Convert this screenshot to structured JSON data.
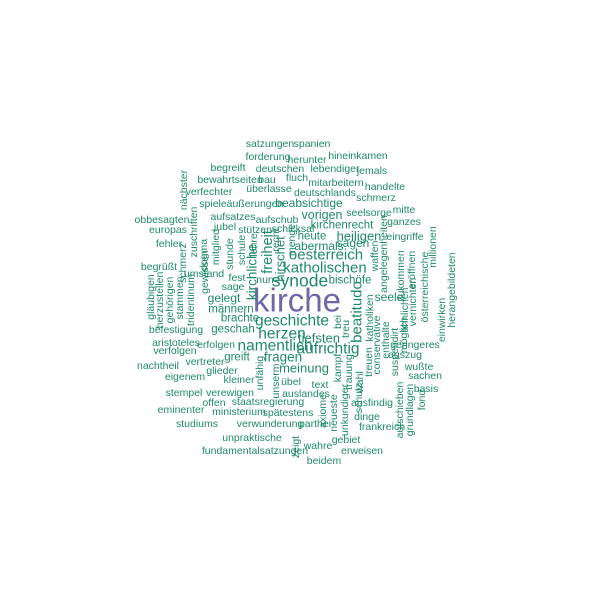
{
  "cloud": {
    "color": "#1f8a6a",
    "accent": "#6f68a8",
    "words": [
      {
        "text": "kirche",
        "weight": 1.0
      },
      {
        "text": "synode",
        "weight": 0.38
      },
      {
        "text": "geschichte",
        "weight": 0.3
      },
      {
        "text": "namentlich",
        "weight": 0.3
      },
      {
        "text": "herzen",
        "weight": 0.3
      },
      {
        "text": "aufrichtig",
        "weight": 0.3
      },
      {
        "text": "katholischen",
        "weight": 0.28
      },
      {
        "text": "oesterreich",
        "weight": 0.28
      },
      {
        "text": "beatitudo",
        "weight": 0.28
      },
      {
        "text": "freiheit",
        "weight": 0.26
      },
      {
        "text": "fragen",
        "weight": 0.22
      },
      {
        "text": "kirchliche",
        "weight": 0.22
      },
      {
        "text": "meinung",
        "weight": 0.2
      },
      {
        "text": "tiefsten",
        "weight": 0.2
      },
      {
        "text": "heiligen",
        "weight": 0.2
      },
      {
        "text": "hirschet",
        "weight": 0.2
      },
      {
        "text": "vorigen",
        "weight": 0.18
      },
      {
        "text": "beabsichtige",
        "weight": 0.16
      },
      {
        "text": "gelegt",
        "weight": 0.16
      },
      {
        "text": "abermals",
        "weight": 0.16
      },
      {
        "text": "sagen",
        "weight": 0.16
      },
      {
        "text": "seele",
        "weight": 0.16
      },
      {
        "text": "kirchenrecht",
        "weight": 0.14
      },
      {
        "text": "bischöfe",
        "weight": 0.14
      },
      {
        "text": "heute",
        "weight": 0.14
      },
      {
        "text": "brachte",
        "weight": 0.14
      },
      {
        "text": "männern",
        "weight": 0.14
      },
      {
        "text": "geschah",
        "weight": 0.14
      },
      {
        "text": "greift",
        "weight": 0.14
      },
      {
        "text": "satzungen",
        "weight": 0.1
      },
      {
        "text": "spanien",
        "weight": 0.1
      },
      {
        "text": "forderung",
        "weight": 0.1
      },
      {
        "text": "herunter",
        "weight": 0.1
      },
      {
        "text": "hineinkamen",
        "weight": 0.1
      },
      {
        "text": "begreift",
        "weight": 0.1
      },
      {
        "text": "deutschen",
        "weight": 0.1
      },
      {
        "text": "lebendiger",
        "weight": 0.1
      },
      {
        "text": "jemals",
        "weight": 0.1
      },
      {
        "text": "bewahrtseiten",
        "weight": 0.1
      },
      {
        "text": "bau",
        "weight": 0.1
      },
      {
        "text": "fluch",
        "weight": 0.1
      },
      {
        "text": "mitarbeitern",
        "weight": 0.1
      },
      {
        "text": "verfechter",
        "weight": 0.1
      },
      {
        "text": "überlasse",
        "weight": 0.1
      },
      {
        "text": "deutschlands",
        "weight": 0.1
      },
      {
        "text": "handelte",
        "weight": 0.1
      },
      {
        "text": "schmerz",
        "weight": 0.1
      },
      {
        "text": "spiele",
        "weight": 0.1
      },
      {
        "text": "äußerungen",
        "weight": 0.1
      },
      {
        "text": "mitte",
        "weight": 0.1
      },
      {
        "text": "seelsorge",
        "weight": 0.1
      },
      {
        "text": "obbesagten",
        "weight": 0.1
      },
      {
        "text": "aufsatzes",
        "weight": 0.1
      },
      {
        "text": "aufschub",
        "weight": 0.1
      },
      {
        "text": "ganzes",
        "weight": 0.1
      },
      {
        "text": "europas",
        "weight": 0.1
      },
      {
        "text": "jubel",
        "weight": 0.1
      },
      {
        "text": "stützen",
        "weight": 0.1
      },
      {
        "text": "schicksal",
        "weight": 0.1
      },
      {
        "text": "fehler",
        "weight": 0.1
      },
      {
        "text": "eingriffe",
        "weight": 0.1
      },
      {
        "text": "begrüßt",
        "weight": 0.1
      },
      {
        "text": "umstand",
        "weight": 0.1
      },
      {
        "text": "fest",
        "weight": 0.1
      },
      {
        "text": "nun",
        "weight": 0.1
      },
      {
        "text": "sage",
        "weight": 0.1
      },
      {
        "text": "befestigung",
        "weight": 0.1
      },
      {
        "text": "aristoteles",
        "weight": 0.1
      },
      {
        "text": "verfolgen",
        "weight": 0.1
      },
      {
        "text": "erfolgen",
        "weight": 0.1
      },
      {
        "text": "geringeres",
        "weight": 0.1
      },
      {
        "text": "auszug",
        "weight": 0.1
      },
      {
        "text": "nachtheil",
        "weight": 0.1
      },
      {
        "text": "vertreter",
        "weight": 0.1
      },
      {
        "text": "glieder",
        "weight": 0.1
      },
      {
        "text": "wußte",
        "weight": 0.1
      },
      {
        "text": "eigenem",
        "weight": 0.1
      },
      {
        "text": "kleiner",
        "weight": 0.1
      },
      {
        "text": "sachen",
        "weight": 0.1
      },
      {
        "text": "übel",
        "weight": 0.1
      },
      {
        "text": "text",
        "weight": 0.1
      },
      {
        "text": "basis",
        "weight": 0.1
      },
      {
        "text": "stempel",
        "weight": 0.1
      },
      {
        "text": "verewigen",
        "weight": 0.1
      },
      {
        "text": "auslandes",
        "weight": 0.1
      },
      {
        "text": "ausfindig",
        "weight": 0.1
      },
      {
        "text": "offen",
        "weight": 0.1
      },
      {
        "text": "staatsregierung",
        "weight": 0.1
      },
      {
        "text": "eminenter",
        "weight": 0.1
      },
      {
        "text": "ministerium",
        "weight": 0.1
      },
      {
        "text": "spätestens",
        "weight": 0.1
      },
      {
        "text": "dinge",
        "weight": 0.1
      },
      {
        "text": "studiums",
        "weight": 0.1
      },
      {
        "text": "verwunderung",
        "weight": 0.1
      },
      {
        "text": "parthei",
        "weight": 0.1
      },
      {
        "text": "frankreich",
        "weight": 0.1
      },
      {
        "text": "unpraktische",
        "weight": 0.1
      },
      {
        "text": "gebiet",
        "weight": 0.1
      },
      {
        "text": "wahre",
        "weight": 0.1
      },
      {
        "text": "fundamentalsatzungen",
        "weight": 0.1
      },
      {
        "text": "erweisen",
        "weight": 0.1
      },
      {
        "text": "beidem",
        "weight": 0.1
      },
      {
        "text": "zeigt",
        "weight": 0.1
      },
      {
        "text": "nächster",
        "weight": 0.1
      },
      {
        "text": "zuschriften",
        "weight": 0.1
      },
      {
        "text": "dogma",
        "weight": 0.1
      },
      {
        "text": "mitglied",
        "weight": 0.1
      },
      {
        "text": "gewissen",
        "weight": 0.1
      },
      {
        "text": "stunde",
        "weight": 0.1
      },
      {
        "text": "schule",
        "weight": 0.1
      },
      {
        "text": "lehre",
        "weight": 0.1
      },
      {
        "text": "schmerz",
        "weight": 0.1
      },
      {
        "text": "herzustellen",
        "weight": 0.1
      },
      {
        "text": "gläubigen",
        "weight": 0.1
      },
      {
        "text": "gehörigen",
        "weight": 0.1
      },
      {
        "text": "stammen",
        "weight": 0.1
      },
      {
        "text": "tridentinum",
        "weight": 0.1
      },
      {
        "text": "unfähig",
        "weight": 0.1
      },
      {
        "text": "unserm",
        "weight": 0.1
      },
      {
        "text": "kampf",
        "weight": 0.1
      },
      {
        "text": "trauung",
        "weight": 0.1
      },
      {
        "text": "wahl",
        "weight": 0.1
      },
      {
        "text": "axiome",
        "weight": 0.1
      },
      {
        "text": "neueste",
        "weight": 0.1
      },
      {
        "text": "unkundiger",
        "weight": 0.1
      },
      {
        "text": "schutz",
        "weight": 0.1
      },
      {
        "text": "treuen",
        "weight": 0.1
      },
      {
        "text": "treu",
        "weight": 0.1
      },
      {
        "text": "katholiken",
        "weight": 0.1
      },
      {
        "text": "bei",
        "weight": 0.1
      },
      {
        "text": "conservative",
        "weight": 0.1
      },
      {
        "text": "enthalte",
        "weight": 0.1
      },
      {
        "text": "suspendirt",
        "weight": 0.1
      },
      {
        "text": "möglich",
        "weight": 0.1
      },
      {
        "text": "angelegenheiten",
        "weight": 0.1
      },
      {
        "text": "waffen",
        "weight": 0.1
      },
      {
        "text": "zukommen",
        "weight": 0.1
      },
      {
        "text": "ähnlichen",
        "weight": 0.1
      },
      {
        "text": "vernichten",
        "weight": 0.1
      },
      {
        "text": "eröffnen",
        "weight": 0.1
      },
      {
        "text": "österreichische",
        "weight": 0.1
      },
      {
        "text": "millionen",
        "weight": 0.1
      },
      {
        "text": "einwirken",
        "weight": 0.1
      },
      {
        "text": "herangebildeten",
        "weight": 0.1
      },
      {
        "text": "aufschieben",
        "weight": 0.1
      },
      {
        "text": "grundlagen",
        "weight": 0.1
      },
      {
        "text": "fond",
        "weight": 0.1
      },
      {
        "text": "recht",
        "weight": 0.1
      },
      {
        "text": "menge",
        "weight": 0.1
      }
    ]
  }
}
